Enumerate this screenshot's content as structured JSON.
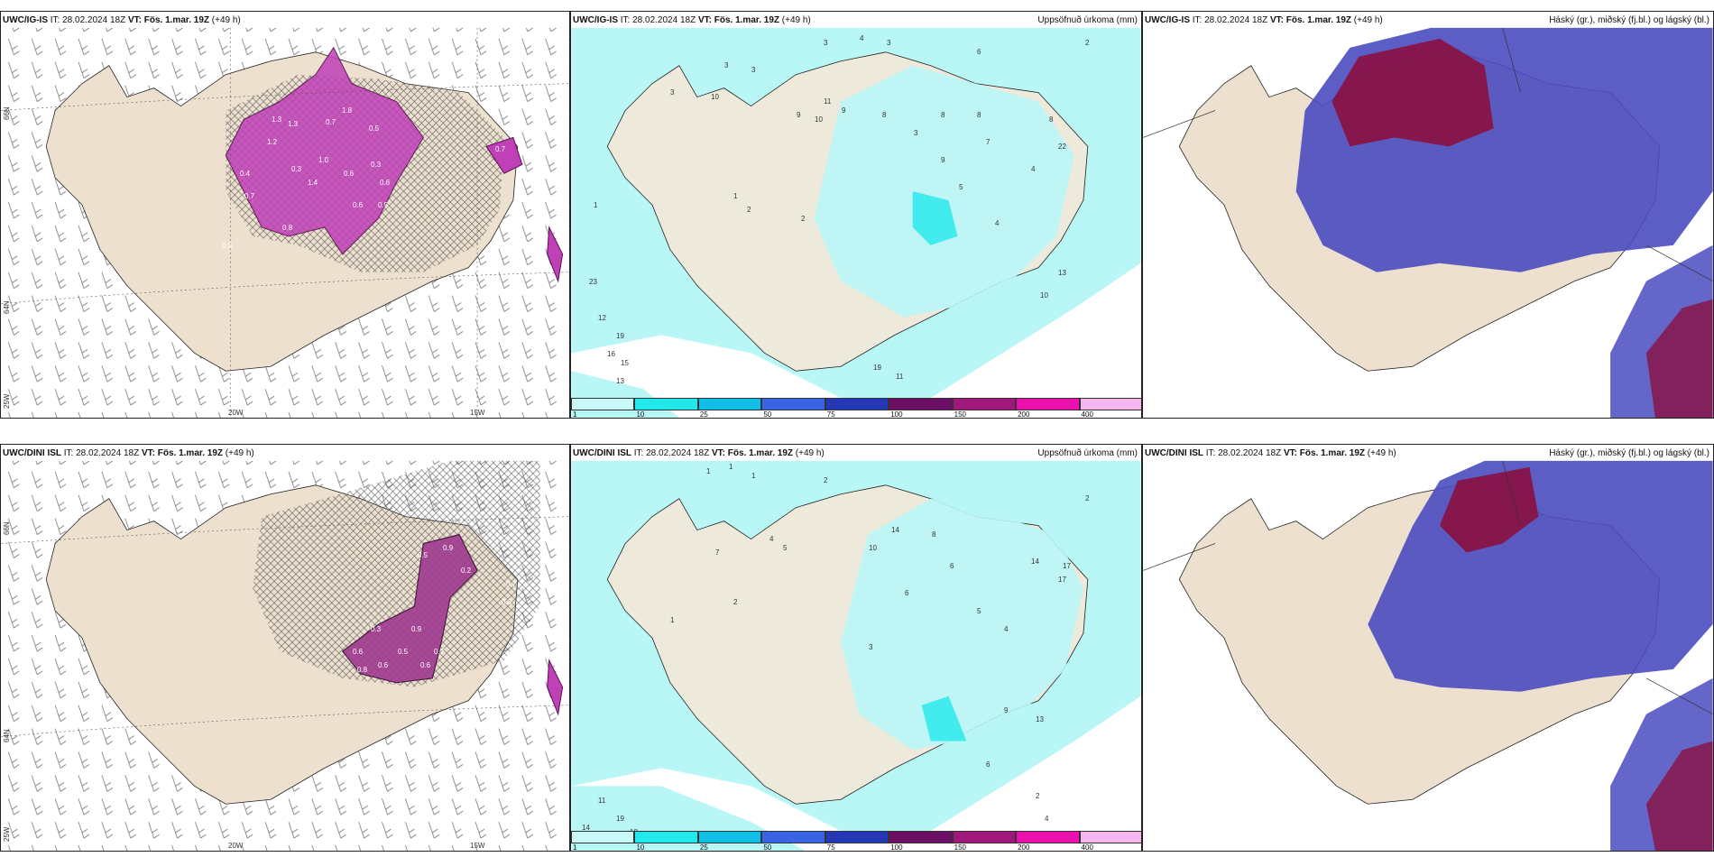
{
  "panels": [
    {
      "model": "UWC/IG-IS",
      "it_label": "IT:",
      "it": "28.02.2024 18Z",
      "vt_label": "VT:",
      "vt": "Fös. 1.mar. 19Z",
      "lead": "(+49 h)",
      "right": ""
    },
    {
      "model": "UWC/IG-IS",
      "it_label": "IT:",
      "it": "28.02.2024 18Z",
      "vt_label": "VT:",
      "vt": "Fös. 1.mar. 19Z",
      "lead": "(+49 h)",
      "right": "Uppsöfnuð úrkoma (mm)"
    },
    {
      "model": "UWC/IG-IS",
      "it_label": "IT:",
      "it": "28.02.2024 18Z",
      "vt_label": "VT:",
      "vt": "Fös. 1.mar. 19Z",
      "lead": "(+49 h)",
      "right": "Háský (gr.), miðský (fj.bl.) og lágský (bl.)"
    },
    {
      "model": "UWC/DINI ISL",
      "it_label": "IT:",
      "it": "28.02.2024 18Z",
      "vt_label": "VT:",
      "vt": "Fös. 1.mar. 19Z",
      "lead": "(+49 h)",
      "right": ""
    },
    {
      "model": "UWC/DINI ISL",
      "it_label": "IT:",
      "it": "28.02.2024 18Z",
      "vt_label": "VT:",
      "vt": "Fös. 1.mar. 19Z",
      "lead": "(+49 h)",
      "right": "Uppsöfnuð úrkoma (mm)"
    },
    {
      "model": "UWC/DINI ISL",
      "it_label": "IT:",
      "it": "28.02.2024 18Z",
      "vt_label": "VT:",
      "vt": "Fös. 1.mar. 19Z",
      "lead": "(+49 h)",
      "right": "Háský (gr.), miðský (fj.bl.) og lágský (bl.)"
    }
  ],
  "axes": {
    "lat_top": "66N",
    "lat_mid": "64N",
    "lat_bottom": "25W",
    "lon_left": "20W",
    "lon_right": "15W",
    "lat_side": "65N"
  },
  "colorbar": {
    "ticks": [
      "1",
      "10",
      "25",
      "50",
      "75",
      "100",
      "150",
      "200",
      "400"
    ],
    "colors": [
      "#c8f8f8",
      "#22e8ec",
      "#10bfe8",
      "#3b63e6",
      "#2438b8",
      "#6a0f64",
      "#a0197a",
      "#ec10b0",
      "#f4b6ee"
    ]
  },
  "snow_labels_top": [
    "4",
    "1.3",
    "1.8",
    "0.7",
    "1.0",
    "0.5",
    "0.6",
    "1.2",
    "0.3",
    "1.4",
    "0.6",
    "0.8",
    "0.7",
    "0.4",
    "0.6",
    "0.5",
    "1.3",
    "0.3",
    "0.8",
    "0.7"
  ],
  "snow_labels_bottom": [
    "0.5",
    "0.9",
    "0.2",
    "0.7",
    "0.3",
    "0.6",
    "0.9",
    "0.3",
    "0.6",
    "0.5",
    "0.6",
    "0.7",
    "0.8"
  ],
  "precip_labels_top": [
    "3",
    "3",
    "4",
    "3",
    "6",
    "2",
    "3",
    "3",
    "10",
    "9",
    "8",
    "9",
    "10",
    "11",
    "8",
    "8",
    "7",
    "22",
    "8",
    "4",
    "9",
    "5",
    "3",
    "4",
    "1",
    "2",
    "2",
    "1",
    "23",
    "12",
    "19",
    "16",
    "15",
    "13",
    "19",
    "11",
    "10",
    "13"
  ],
  "precip_labels_bottom": [
    "1",
    "1",
    "1",
    "2",
    "2",
    "4",
    "5",
    "7",
    "10",
    "14",
    "8",
    "6",
    "17",
    "14",
    "6",
    "2",
    "5",
    "4",
    "3",
    "1",
    "11",
    "19",
    "14",
    "18",
    "9",
    "6",
    "2",
    "4",
    "13",
    "17"
  ]
}
